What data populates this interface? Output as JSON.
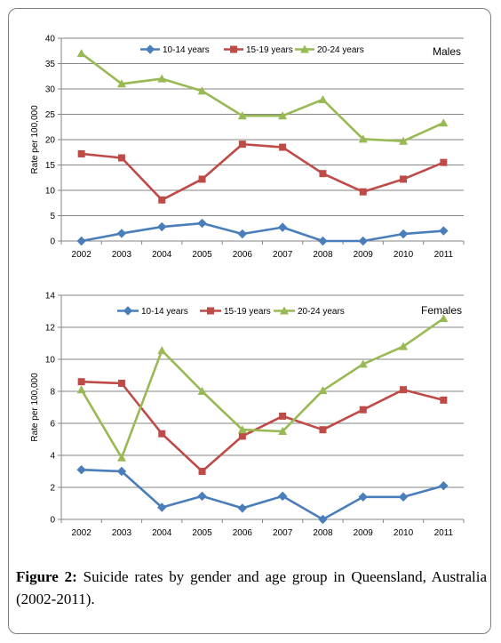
{
  "caption": {
    "label": "Figure 2:",
    "text": " Suicide rates by gender and age group in Queensland, Australia (2002-2011)."
  },
  "colors": {
    "10-14 years": "#4a7ebb",
    "15-19 years": "#be4b48",
    "20-24 years": "#98b954",
    "grid": "#868686"
  },
  "chart_data": [
    {
      "type": "line",
      "title": "Males",
      "xlabel": "",
      "ylabel": "Rate per 100,000",
      "ylim": [
        0,
        40
      ],
      "yticks": [
        0,
        5,
        10,
        15,
        20,
        25,
        30,
        35,
        40
      ],
      "grid": true,
      "legend": "top",
      "categories": [
        "2002",
        "2003",
        "2004",
        "2005",
        "2006",
        "2007",
        "2008",
        "2009",
        "2010",
        "2011"
      ],
      "series": [
        {
          "name": "10-14 years",
          "marker": "diamond",
          "values": [
            0.0,
            1.5,
            2.8,
            3.5,
            1.4,
            2.7,
            0.0,
            0.0,
            1.4,
            2.0
          ]
        },
        {
          "name": "15-19 years",
          "marker": "square",
          "values": [
            17.2,
            16.4,
            8.1,
            12.2,
            19.1,
            18.5,
            13.3,
            9.7,
            12.2,
            15.5
          ]
        },
        {
          "name": "20-24 years",
          "marker": "triangle",
          "values": [
            37.0,
            31.0,
            32.0,
            29.6,
            24.7,
            24.7,
            27.9,
            20.1,
            19.7,
            23.3
          ]
        }
      ]
    },
    {
      "type": "line",
      "title": "Females",
      "xlabel": "",
      "ylabel": "Rate per 100,000",
      "ylim": [
        0,
        14
      ],
      "yticks": [
        0,
        2,
        4,
        6,
        8,
        10,
        12,
        14
      ],
      "grid": true,
      "legend": "top",
      "categories": [
        "2002",
        "2003",
        "2004",
        "2005",
        "2006",
        "2007",
        "2008",
        "2009",
        "2010",
        "2011"
      ],
      "series": [
        {
          "name": "10-14 years",
          "marker": "diamond",
          "values": [
            3.1,
            3.0,
            0.75,
            1.45,
            0.7,
            1.45,
            0.0,
            1.4,
            1.4,
            2.1
          ]
        },
        {
          "name": "15-19 years",
          "marker": "square",
          "values": [
            8.6,
            8.5,
            5.35,
            3.0,
            5.2,
            6.45,
            5.6,
            6.85,
            8.1,
            7.45
          ]
        },
        {
          "name": "20-24 years",
          "marker": "triangle",
          "values": [
            8.1,
            3.85,
            10.55,
            8.0,
            5.6,
            5.5,
            8.05,
            9.7,
            10.8,
            12.55
          ]
        }
      ]
    }
  ]
}
